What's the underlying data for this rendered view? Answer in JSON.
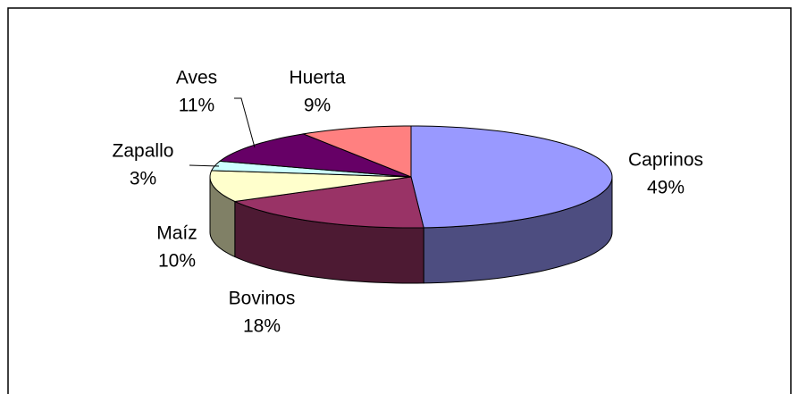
{
  "chart_data": {
    "type": "pie3d",
    "categories": [
      "Caprinos",
      "Bovinos",
      "Maíz",
      "Zapallo",
      "Aves",
      "Huerta"
    ],
    "values": [
      49,
      18,
      10,
      3,
      11,
      9
    ],
    "value_labels": [
      "49%",
      "18%",
      "10%",
      "3%",
      "11%",
      "9%"
    ],
    "colors": [
      "#9999ff",
      "#993366",
      "#ffffcc",
      "#ccffff",
      "#660066",
      "#ff8080"
    ]
  }
}
